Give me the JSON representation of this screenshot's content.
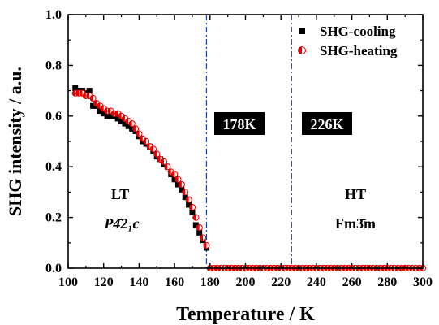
{
  "chart_data": {
    "type": "scatter",
    "xlabel": "Temperature / K",
    "ylabel": "SHG intensity / a.u.",
    "xlim": [
      100,
      300
    ],
    "ylim": [
      0,
      1.0
    ],
    "xticks": [
      100,
      120,
      140,
      160,
      180,
      200,
      220,
      240,
      260,
      280,
      300
    ],
    "yticks": [
      0.0,
      0.2,
      0.4,
      0.6,
      0.8,
      1.0
    ],
    "xtick_labels": [
      "100",
      "120",
      "140",
      "160",
      "180",
      "200",
      "220",
      "240",
      "260",
      "280",
      "300"
    ],
    "ytick_labels": [
      "0.0",
      "0.2",
      "0.4",
      "0.6",
      "0.8",
      "1.0"
    ],
    "grid": false,
    "legend_position": "top-right",
    "transition_lines": [
      178,
      226
    ],
    "transition_labels": [
      "178K",
      "226K"
    ],
    "phase_labels": {
      "lt": "LT",
      "lt_group": "P4̄2₁c",
      "ht": "HT",
      "ht_group": "Fm3̄m"
    },
    "series": [
      {
        "name": "SHG-cooling",
        "marker": "square",
        "color": "#000000",
        "x": [
          104,
          106,
          108,
          110,
          112,
          114,
          116,
          118,
          120,
          122,
          124,
          126,
          128,
          130,
          132,
          134,
          136,
          138,
          140,
          142,
          144,
          146,
          148,
          150,
          152,
          154,
          156,
          158,
          160,
          162,
          164,
          166,
          168,
          170,
          172,
          174,
          176,
          178
        ],
        "y": [
          0.71,
          0.7,
          0.7,
          0.69,
          0.7,
          0.64,
          0.64,
          0.62,
          0.61,
          0.6,
          0.6,
          0.6,
          0.59,
          0.58,
          0.57,
          0.56,
          0.55,
          0.54,
          0.52,
          0.5,
          0.49,
          0.48,
          0.46,
          0.44,
          0.43,
          0.41,
          0.4,
          0.37,
          0.35,
          0.33,
          0.31,
          0.28,
          0.25,
          0.22,
          0.17,
          0.14,
          0.11,
          0.08
        ]
      },
      {
        "name": "SHG-heating",
        "marker": "half-filled-circle",
        "color": "#e00000",
        "x": [
          104,
          106,
          108,
          110,
          112,
          114,
          116,
          118,
          120,
          122,
          124,
          126,
          128,
          130,
          132,
          134,
          136,
          138,
          140,
          142,
          144,
          146,
          148,
          150,
          152,
          154,
          156,
          158,
          160,
          162,
          164,
          166,
          168,
          170,
          172,
          174,
          176,
          178,
          180,
          182,
          184,
          186,
          188,
          190,
          192,
          194,
          196,
          198,
          200,
          202,
          204,
          206,
          208,
          210,
          212,
          214,
          216,
          218,
          220,
          222,
          224,
          226,
          228,
          230,
          232,
          234,
          236,
          238,
          240,
          242,
          244,
          246,
          248,
          250,
          252,
          254,
          256,
          258,
          260,
          262,
          264,
          266,
          268,
          270,
          272,
          274,
          276,
          278,
          280,
          282,
          284,
          286,
          288,
          290,
          292,
          294,
          296,
          298,
          300
        ],
        "y": [
          0.69,
          0.69,
          0.69,
          0.68,
          0.68,
          0.67,
          0.65,
          0.64,
          0.63,
          0.62,
          0.62,
          0.61,
          0.61,
          0.6,
          0.59,
          0.58,
          0.57,
          0.55,
          0.53,
          0.51,
          0.5,
          0.48,
          0.47,
          0.45,
          0.43,
          0.42,
          0.4,
          0.38,
          0.37,
          0.35,
          0.33,
          0.3,
          0.27,
          0.24,
          0.2,
          0.16,
          0.12,
          0.09,
          0.0,
          0.0,
          0.0,
          0.0,
          0.0,
          0.0,
          0.0,
          0.0,
          0.0,
          0.0,
          0.0,
          0.0,
          0.0,
          0.0,
          0.0,
          0.0,
          0.0,
          0.0,
          0.0,
          0.0,
          0.0,
          0.0,
          0.0,
          0.0,
          0.0,
          0.0,
          0.0,
          0.0,
          0.0,
          0.0,
          0.0,
          0.0,
          0.0,
          0.0,
          0.0,
          0.0,
          0.0,
          0.0,
          0.0,
          0.0,
          0.0,
          0.0,
          0.0,
          0.0,
          0.0,
          0.0,
          0.0,
          0.0,
          0.0,
          0.0,
          0.0,
          0.0,
          0.0,
          0.0,
          0.0,
          0.0,
          0.0,
          0.0,
          0.0,
          0.0,
          0.0
        ]
      }
    ]
  }
}
